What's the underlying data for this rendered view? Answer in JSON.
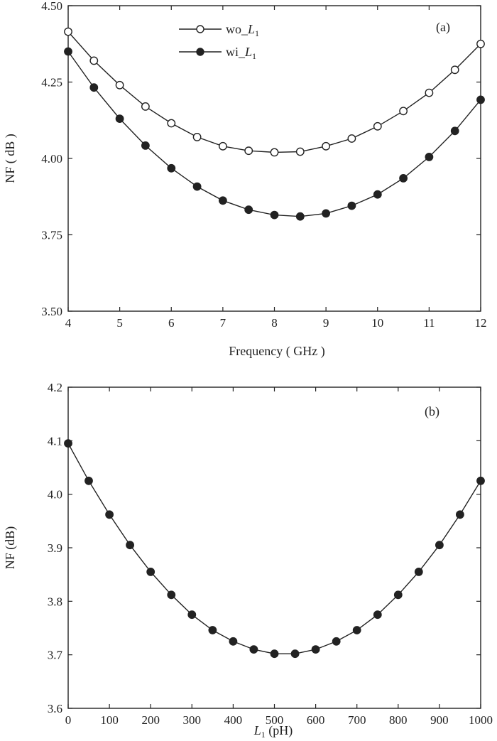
{
  "chart_data": [
    {
      "type": "line",
      "panel_label": "(a)",
      "xlabel": "Frequency ( GHz )",
      "ylabel": "NF ( dB )",
      "xlim": [
        4,
        12
      ],
      "ylim": [
        3.5,
        4.5
      ],
      "xticks": [
        "4",
        "5",
        "6",
        "7",
        "8",
        "9",
        "10",
        "11",
        "12"
      ],
      "yticks": [
        "3.50",
        "3.75",
        "4.00",
        "4.25",
        "4.50"
      ],
      "legend_placement": "top-left",
      "x": [
        4,
        4.5,
        5,
        5.5,
        6,
        6.5,
        7,
        7.5,
        8,
        8.5,
        9,
        9.5,
        10,
        10.5,
        11,
        11.5,
        12
      ],
      "series": [
        {
          "name": "wo_L1",
          "legend_main": "wo_",
          "legend_italic": "L",
          "legend_sub": "1",
          "marker": "open-circle",
          "values": [
            4.415,
            4.32,
            4.24,
            4.17,
            4.115,
            4.07,
            4.04,
            4.025,
            4.02,
            4.022,
            4.04,
            4.065,
            4.105,
            4.155,
            4.215,
            4.29,
            4.375
          ]
        },
        {
          "name": "wi_L1",
          "legend_main": "wi_",
          "legend_italic": "L",
          "legend_sub": "1",
          "marker": "filled-circle",
          "values": [
            4.35,
            4.232,
            4.13,
            4.042,
            3.968,
            3.908,
            3.862,
            3.832,
            3.815,
            3.81,
            3.82,
            3.845,
            3.882,
            3.935,
            4.005,
            4.09,
            4.192
          ]
        }
      ]
    },
    {
      "type": "line",
      "panel_label": "(b)",
      "xlabel_italic": "L",
      "xlabel_sub": "1",
      "xlabel_rest": " (pH)",
      "ylabel": "NF (dB)",
      "xlim": [
        0,
        1000
      ],
      "ylim": [
        3.6,
        4.2
      ],
      "xticks": [
        "0",
        "100",
        "200",
        "300",
        "400",
        "500",
        "600",
        "700",
        "800",
        "900",
        "1000"
      ],
      "yticks": [
        "3.6",
        "3.7",
        "3.8",
        "3.9",
        "4.0",
        "4.1",
        "4.2"
      ],
      "x": [
        0,
        50,
        100,
        150,
        200,
        250,
        300,
        350,
        400,
        450,
        500,
        550,
        600,
        650,
        700,
        750,
        800,
        850,
        900,
        950,
        1000
      ],
      "series": [
        {
          "marker": "filled-circle",
          "values": [
            4.095,
            4.025,
            3.962,
            3.905,
            3.855,
            3.812,
            3.775,
            3.746,
            3.725,
            3.71,
            3.702,
            3.702,
            3.71,
            3.725,
            3.746,
            3.775,
            3.812,
            3.855,
            3.905,
            3.962,
            4.025
          ]
        }
      ]
    }
  ]
}
